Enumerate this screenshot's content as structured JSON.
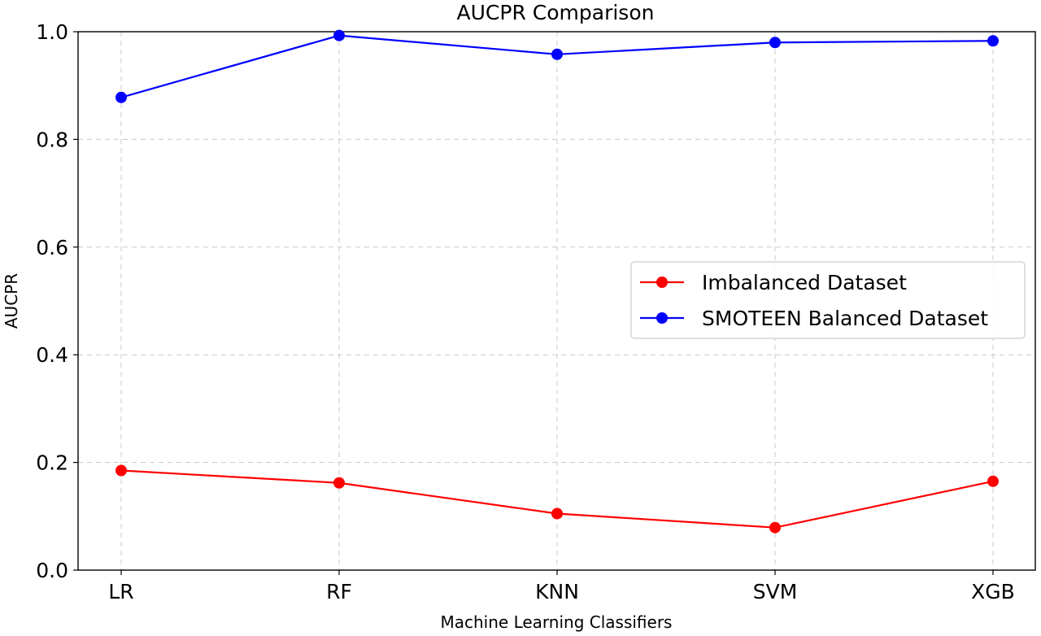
{
  "chart_data": {
    "type": "line",
    "title": "AUCPR Comparison",
    "xlabel": "Machine Learning Classifiers",
    "ylabel": "AUCPR",
    "categories": [
      "LR",
      "RF",
      "KNN",
      "SVM",
      "XGB"
    ],
    "ylim": [
      0.0,
      1.0
    ],
    "yticks": [
      "0.0",
      "0.2",
      "0.4",
      "0.6",
      "0.8",
      "1.0"
    ],
    "grid": true,
    "grid_style": "dashed",
    "legend_position": "center-right",
    "series": [
      {
        "name": "Imbalanced Dataset",
        "color": "#ff0000",
        "marker": "circle",
        "values": [
          0.185,
          0.162,
          0.105,
          0.079,
          0.165
        ]
      },
      {
        "name": "SMOTEEN Balanced Dataset",
        "color": "#0000ff",
        "marker": "circle",
        "values": [
          0.878,
          0.993,
          0.958,
          0.98,
          0.983
        ]
      }
    ]
  }
}
